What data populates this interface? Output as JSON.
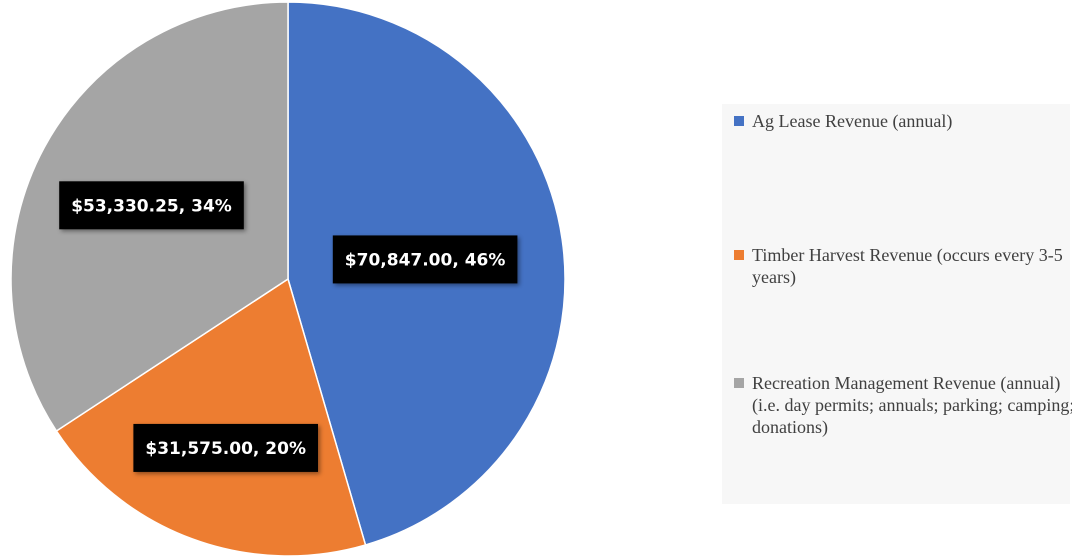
{
  "chart_data": {
    "type": "pie",
    "categories": [
      "Ag Lease Revenue (annual)",
      "Timber Harvest Revenue (occurs every 3-5 years)",
      "Recreation Management Revenue (annual) (i.e. day permits; annuals; parking; camping; donations)"
    ],
    "values": [
      70847.0,
      31575.0,
      53330.25
    ],
    "value_labels": [
      "$70,847.00, 46%",
      "$31,575.00, 20%",
      "$53,330.25, 34%"
    ],
    "colors": [
      "#4472c4",
      "#ed7d31",
      "#a5a5a5"
    ],
    "legend": "right"
  }
}
